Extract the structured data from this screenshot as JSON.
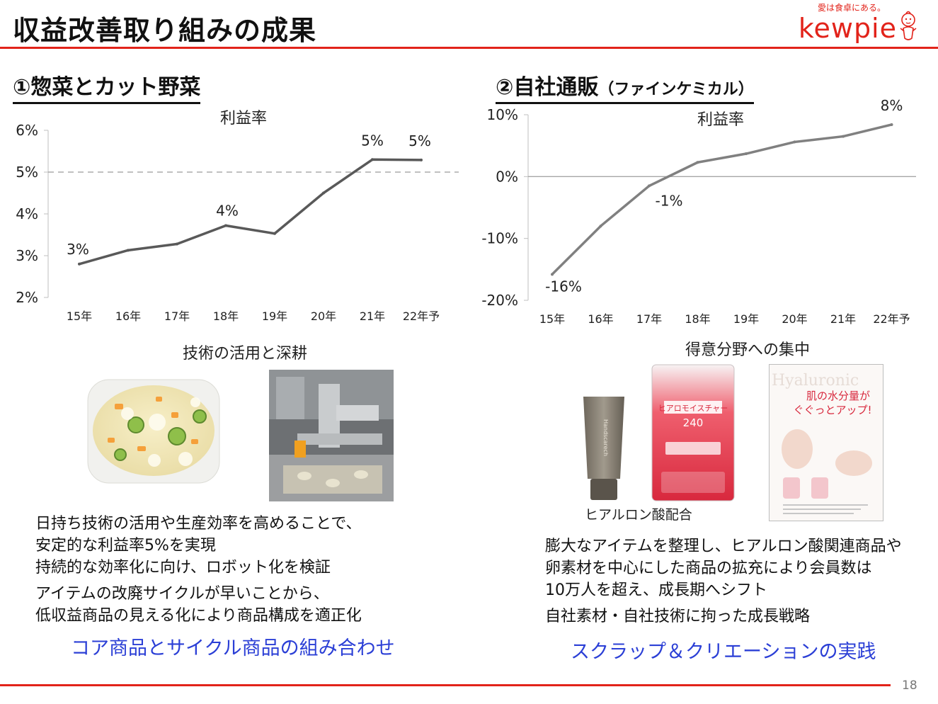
{
  "page": {
    "title": "収益改善取り組みの成果",
    "page_number": "18",
    "accent_color": "#e2231a",
    "highlight_color": "#2b3fd6"
  },
  "logo": {
    "tagline": "愛は食卓にある。",
    "wordmark": "kewpie"
  },
  "left": {
    "heading": "①惣菜とカット野菜",
    "caption": "技術の活用と深耕",
    "body_lines": [
      "日持ち技術の活用や生産効率を高めることで、",
      "安定的な利益率5%を実現",
      "持続的な効率化に向け、ロボット化を検証",
      "アイテムの改廃サイクルが早いことから、",
      "低収益商品の見える化により商品構成を適正化"
    ],
    "highlight": "コア商品とサイクル商品の組み合わせ"
  },
  "right": {
    "heading": "②自社通販",
    "heading_suffix": "（ファインケミカル）",
    "caption": "得意分野への集中",
    "product_caption": "ヒアルロン酸配合",
    "body_lines": [
      "膨大なアイテムを整理し、ヒアルロン酸関連商品や",
      "卵素材を中心にした商品の拡充により会員数は",
      "10万人を超え、成長期へシフト",
      "自社素材・自社技術に拘った成長戦略"
    ],
    "highlight": "スクラップ＆クリエーションの実践",
    "product_text": {
      "tube_brand": "Handscarech",
      "pouch_name": "ヒアロモイスチャー",
      "pouch_number": "240",
      "flyer_headline_1": "肌の水分量が",
      "flyer_headline_2": "ぐぐっとアップ!",
      "flyer_bg_word": "Hyaluronic"
    }
  },
  "chart_data": [
    {
      "type": "line",
      "title": "利益率",
      "categories": [
        "15年",
        "16年",
        "17年",
        "18年",
        "19年",
        "20年",
        "21年",
        "22年予"
      ],
      "series": [
        {
          "values": [
            2.8,
            3.13,
            3.28,
            3.72,
            3.53,
            4.5,
            5.3,
            5.29
          ]
        }
      ],
      "data_labels": [
        {
          "index": 0,
          "text": "3%"
        },
        {
          "index": 3,
          "text": "4%"
        },
        {
          "index": 6,
          "text": "5%"
        },
        {
          "index": 7,
          "text": "5%"
        }
      ],
      "ylim": [
        2,
        6
      ],
      "yticks": [
        2,
        3,
        4,
        5,
        6
      ],
      "ytick_labels": [
        "2%",
        "3%",
        "4%",
        "5%",
        "6%"
      ],
      "reference_line": {
        "y": 5,
        "style": "dashed"
      },
      "line_color": "#595959",
      "xlabel": "",
      "ylabel": "",
      "grid": false,
      "legend": "none"
    },
    {
      "type": "line",
      "title": "利益率",
      "categories": [
        "15年",
        "16年",
        "17年",
        "18年",
        "19年",
        "20年",
        "21年",
        "22年予"
      ],
      "series": [
        {
          "values": [
            -15.8,
            -8.0,
            -1.5,
            2.3,
            3.7,
            5.6,
            6.5,
            8.4
          ]
        }
      ],
      "data_labels": [
        {
          "index": 0,
          "text": "-16%"
        },
        {
          "index": 2,
          "text": "-1%"
        },
        {
          "index": 7,
          "text": "8%"
        }
      ],
      "ylim": [
        -20,
        10
      ],
      "yticks": [
        -20,
        -10,
        0,
        10
      ],
      "ytick_labels": [
        "-20%",
        "-10%",
        "0%",
        "10%"
      ],
      "reference_line": {
        "y": 0,
        "style": "solid"
      },
      "line_color": "#808080",
      "xlabel": "",
      "ylabel": "",
      "grid": false,
      "legend": "none"
    }
  ]
}
